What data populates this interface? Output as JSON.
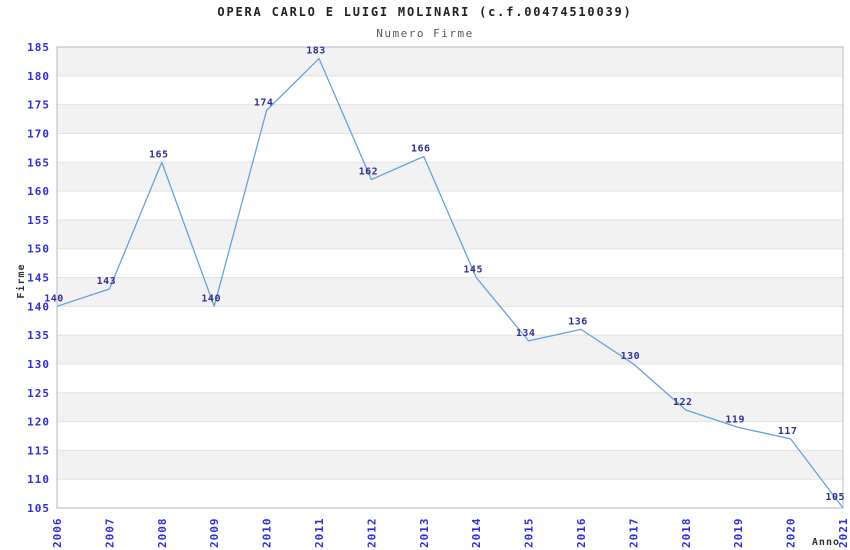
{
  "chart_data": {
    "type": "line",
    "title": "OPERA CARLO E LUIGI MOLINARI (c.f.00474510039)",
    "subtitle": "Numero Firme",
    "xlabel": "Anno",
    "ylabel": "Firme",
    "categories": [
      "2006",
      "2007",
      "2008",
      "2009",
      "2010",
      "2011",
      "2012",
      "2013",
      "2014",
      "2015",
      "2016",
      "2017",
      "2018",
      "2019",
      "2020",
      "2021"
    ],
    "values": [
      140,
      143,
      165,
      140,
      174,
      183,
      162,
      166,
      145,
      134,
      136,
      130,
      122,
      119,
      117,
      105
    ],
    "ylim": [
      105,
      185
    ],
    "ytick_step": 5,
    "grid": "horizontal-lines-with-alternating-bands",
    "legend": "none",
    "data_labels_shown": true,
    "colors": {
      "line": "#68a1dc",
      "data_label": "#30309a",
      "tick_label": "#2e2ee0",
      "title": "#222222",
      "subtitle": "#5a5a5a",
      "axis_title": "#333333",
      "band": "#f2f2f2",
      "gridline": "#e3e3e3",
      "plot_border": "#b9b9b9",
      "background": "#ffffff"
    }
  }
}
